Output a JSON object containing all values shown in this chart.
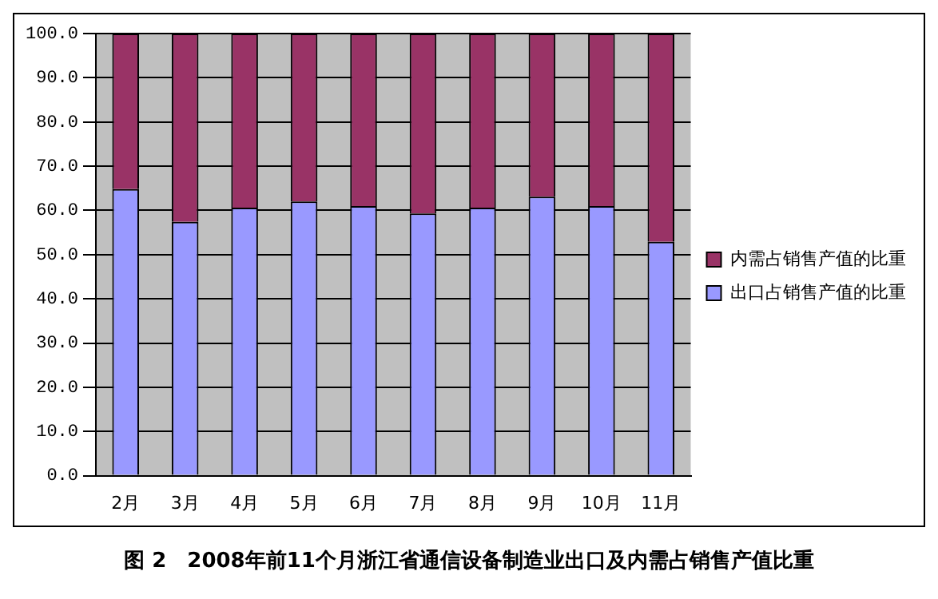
{
  "chart_data": {
    "type": "bar",
    "title": "图 2　2008年前11个月浙江省通信设备制造业出口及内需占销售产值比重",
    "categories": [
      "2月",
      "3月",
      "4月",
      "5月",
      "6月",
      "7月",
      "8月",
      "9月",
      "10月",
      "11月"
    ],
    "stacked": true,
    "series": [
      {
        "name": "出口占销售产值的比重",
        "color": "#9999ff",
        "values": [
          64.8,
          57.4,
          60.6,
          62.0,
          61.0,
          59.3,
          60.6,
          63.1,
          61.0,
          52.9
        ]
      },
      {
        "name": "内需占销售产值的比重",
        "color": "#993366",
        "values": [
          35.2,
          42.6,
          39.4,
          38.0,
          39.0,
          40.7,
          39.4,
          36.9,
          39.0,
          47.1
        ]
      }
    ],
    "ylim": [
      0,
      100
    ],
    "yticks": [
      {
        "value": 0,
        "label": "0.0"
      },
      {
        "value": 10,
        "label": "10.0"
      },
      {
        "value": 20,
        "label": "20.0"
      },
      {
        "value": 30,
        "label": "30.0"
      },
      {
        "value": 40,
        "label": "40.0"
      },
      {
        "value": 50,
        "label": "50.0"
      },
      {
        "value": 60,
        "label": "60.0"
      },
      {
        "value": 70,
        "label": "70.0"
      },
      {
        "value": 80,
        "label": "80.0"
      },
      {
        "value": 90,
        "label": "90.0"
      },
      {
        "value": 100,
        "label": "100.0"
      }
    ],
    "grid": "y",
    "legend": "right"
  }
}
